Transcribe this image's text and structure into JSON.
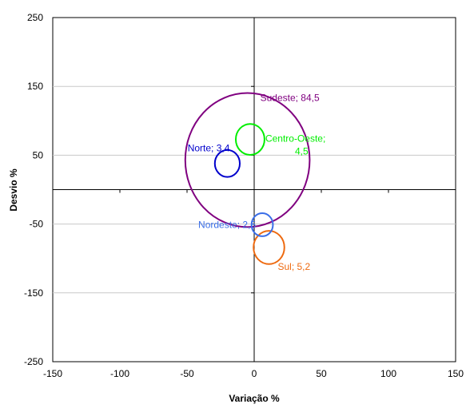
{
  "chart_data": {
    "type": "scatter",
    "title": "",
    "xlabel": "Variação %",
    "ylabel": "Desvio %",
    "xlim": [
      -150,
      150
    ],
    "ylim": [
      -250,
      250
    ],
    "x_ticks": [
      -150,
      -100,
      -50,
      0,
      50,
      100,
      150
    ],
    "y_ticks": [
      -250,
      -150,
      -50,
      50,
      150,
      250
    ],
    "grid": "horizontal",
    "series": [
      {
        "name": "Sudeste",
        "x": -5,
        "y": 43,
        "size": 84.5,
        "label": "Sudeste; 84,5",
        "color": "#800080"
      },
      {
        "name": "Centro-Oeste",
        "x": -3,
        "y": 73,
        "size": 4.5,
        "label": "Centro-Oeste; 4,5",
        "color": "#00ee00"
      },
      {
        "name": "Norte",
        "x": -20,
        "y": 38,
        "size": 3.4,
        "label": "Norte; 3,4",
        "color": "#0000cc"
      },
      {
        "name": "Nordeste",
        "x": 6,
        "y": -51,
        "size": 2.5,
        "label": "Nordeste; 2,5",
        "color": "#3a6ee8"
      },
      {
        "name": "Sul",
        "x": 11,
        "y": -84,
        "size": 5.2,
        "label": "Sul; 5,2",
        "color": "#ee6a10"
      }
    ]
  }
}
